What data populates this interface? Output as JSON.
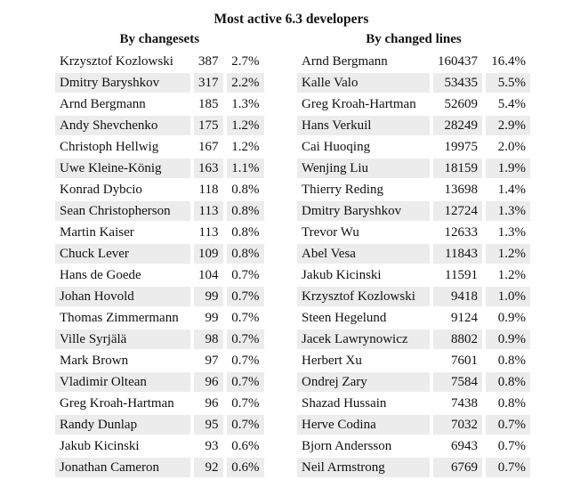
{
  "title": "Most active 6.3 developers",
  "changesets": {
    "heading": "By changesets",
    "rows": [
      {
        "name": "Krzysztof Kozlowski",
        "count": "387",
        "pct": "2.7%"
      },
      {
        "name": "Dmitry Baryshkov",
        "count": "317",
        "pct": "2.2%"
      },
      {
        "name": "Arnd Bergmann",
        "count": "185",
        "pct": "1.3%"
      },
      {
        "name": "Andy Shevchenko",
        "count": "175",
        "pct": "1.2%"
      },
      {
        "name": "Christoph Hellwig",
        "count": "167",
        "pct": "1.2%"
      },
      {
        "name": "Uwe Kleine-König",
        "count": "163",
        "pct": "1.1%"
      },
      {
        "name": "Konrad Dybcio",
        "count": "118",
        "pct": "0.8%"
      },
      {
        "name": "Sean Christopherson",
        "count": "113",
        "pct": "0.8%"
      },
      {
        "name": "Martin Kaiser",
        "count": "113",
        "pct": "0.8%"
      },
      {
        "name": "Chuck Lever",
        "count": "109",
        "pct": "0.8%"
      },
      {
        "name": "Hans de Goede",
        "count": "104",
        "pct": "0.7%"
      },
      {
        "name": "Johan Hovold",
        "count": "99",
        "pct": "0.7%"
      },
      {
        "name": "Thomas Zimmermann",
        "count": "99",
        "pct": "0.7%"
      },
      {
        "name": "Ville Syrjälä",
        "count": "98",
        "pct": "0.7%"
      },
      {
        "name": "Mark Brown",
        "count": "97",
        "pct": "0.7%"
      },
      {
        "name": "Vladimir Oltean",
        "count": "96",
        "pct": "0.7%"
      },
      {
        "name": "Greg Kroah-Hartman",
        "count": "96",
        "pct": "0.7%"
      },
      {
        "name": "Randy Dunlap",
        "count": "95",
        "pct": "0.7%"
      },
      {
        "name": "Jakub Kicinski",
        "count": "93",
        "pct": "0.6%"
      },
      {
        "name": "Jonathan Cameron",
        "count": "92",
        "pct": "0.6%"
      }
    ]
  },
  "lines": {
    "heading": "By changed lines",
    "rows": [
      {
        "name": "Arnd Bergmann",
        "count": "160437",
        "pct": "16.4%"
      },
      {
        "name": "Kalle Valo",
        "count": "53435",
        "pct": "5.5%"
      },
      {
        "name": "Greg Kroah-Hartman",
        "count": "52609",
        "pct": "5.4%"
      },
      {
        "name": "Hans Verkuil",
        "count": "28249",
        "pct": "2.9%"
      },
      {
        "name": "Cai Huoqing",
        "count": "19975",
        "pct": "2.0%"
      },
      {
        "name": "Wenjing Liu",
        "count": "18159",
        "pct": "1.9%"
      },
      {
        "name": "Thierry Reding",
        "count": "13698",
        "pct": "1.4%"
      },
      {
        "name": "Dmitry Baryshkov",
        "count": "12724",
        "pct": "1.3%"
      },
      {
        "name": "Trevor Wu",
        "count": "12633",
        "pct": "1.3%"
      },
      {
        "name": "Abel Vesa",
        "count": "11843",
        "pct": "1.2%"
      },
      {
        "name": "Jakub Kicinski",
        "count": "11591",
        "pct": "1.2%"
      },
      {
        "name": "Krzysztof Kozlowski",
        "count": "9418",
        "pct": "1.0%"
      },
      {
        "name": "Steen Hegelund",
        "count": "9124",
        "pct": "0.9%"
      },
      {
        "name": "Jacek Lawrynowicz",
        "count": "8802",
        "pct": "0.9%"
      },
      {
        "name": "Herbert Xu",
        "count": "7601",
        "pct": "0.8%"
      },
      {
        "name": "Ondrej Zary",
        "count": "7584",
        "pct": "0.8%"
      },
      {
        "name": "Shazad Hussain",
        "count": "7438",
        "pct": "0.8%"
      },
      {
        "name": "Herve Codina",
        "count": "7032",
        "pct": "0.7%"
      },
      {
        "name": "Bjorn Andersson",
        "count": "6943",
        "pct": "0.7%"
      },
      {
        "name": "Neil Armstrong",
        "count": "6769",
        "pct": "0.7%"
      }
    ]
  }
}
